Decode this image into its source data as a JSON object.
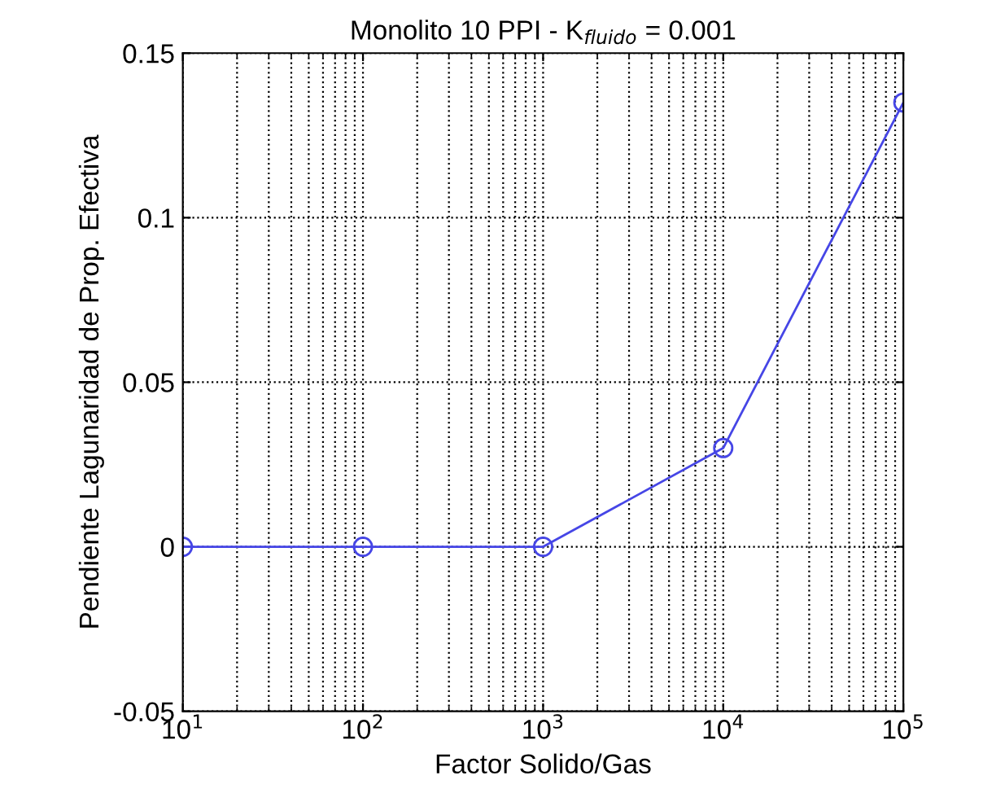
{
  "chart_data": {
    "type": "line",
    "title": "Monolito 10 PPI - K$_{fluido}$ = 0.001",
    "xlabel": "Factor Solido/Gas",
    "ylabel": "Pendiente Lagunaridad de Prop. Efectiva",
    "x": [
      10,
      100,
      1000,
      10000,
      100000
    ],
    "series": [
      {
        "color": "#4646e6",
        "values": [
          0,
          0,
          0,
          0.03,
          0.135
        ]
      }
    ],
    "log": "x",
    "xlim": [
      10,
      100000
    ],
    "xticks": [
      {
        "value": 10,
        "label": "10$^{1}$"
      },
      {
        "value": 100,
        "label": "10$^{2}$"
      },
      {
        "value": 1000,
        "label": "10$^{3}$"
      },
      {
        "value": 10000,
        "label": "10$^{4}$"
      },
      {
        "value": 100000,
        "label": "10$^{5}$"
      }
    ],
    "ylim": [
      -0.05,
      0.15
    ],
    "yticks": [
      -0.05,
      0,
      0.05,
      0.1,
      0.15
    ],
    "grid": true,
    "marker": "circle",
    "line_style": "solid",
    "legend": false
  }
}
